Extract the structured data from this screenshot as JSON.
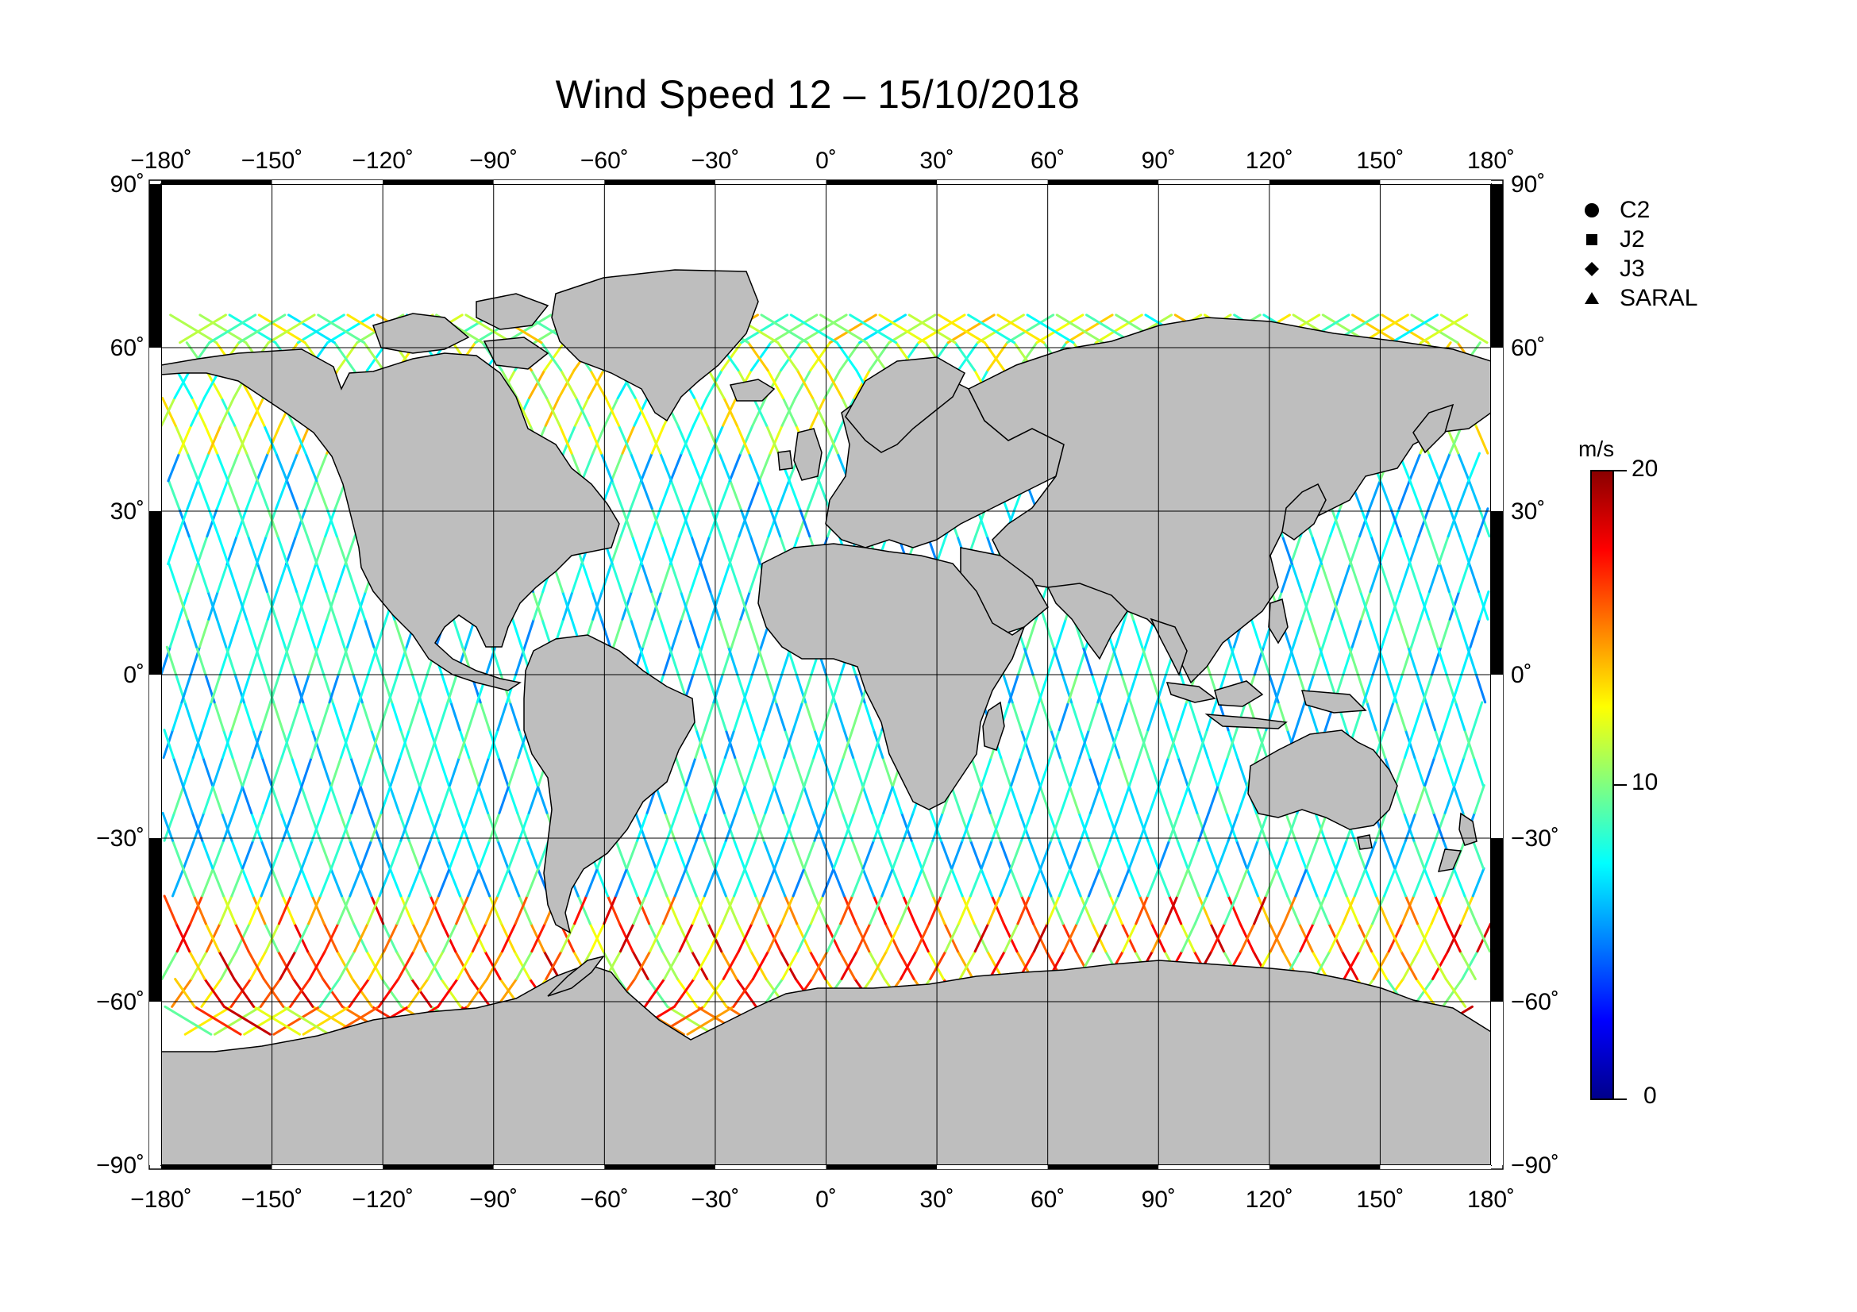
{
  "title": "Wind Speed 12 – 15/10/2018",
  "map": {
    "lon_ticks": [
      "−180˚",
      "−150˚",
      "−120˚",
      "−90˚",
      "−60˚",
      "−30˚",
      "0˚",
      "30˚",
      "60˚",
      "90˚",
      "120˚",
      "150˚",
      "180˚"
    ],
    "lat_ticks_left": [
      "90˚",
      "60˚",
      "30˚",
      "0˚",
      "−30˚",
      "−60˚",
      "−90˚"
    ],
    "lat_ticks_right": [
      "90˚",
      "60˚",
      "30˚",
      "0˚",
      "−30˚",
      "−60˚",
      "−90˚"
    ],
    "land_color": "#bebebe",
    "ocean_color": "#ffffff",
    "graticule_step_deg": 30,
    "data_coverage_lat": [
      -66,
      66
    ]
  },
  "legend": {
    "items": [
      {
        "label": "C2",
        "marker": "circle"
      },
      {
        "label": "J2",
        "marker": "square"
      },
      {
        "label": "J3",
        "marker": "diamond"
      },
      {
        "label": "SARAL",
        "marker": "triangle"
      }
    ]
  },
  "colorbar": {
    "unit": "m/s",
    "max_label": "20",
    "mid_label": "10",
    "min_label": "0",
    "range": [
      0,
      20
    ],
    "colormap": [
      "#00008b",
      "#0000ff",
      "#0080ff",
      "#00ffff",
      "#80ff80",
      "#ffff00",
      "#ff8000",
      "#ff0000",
      "#8b0000"
    ]
  }
}
